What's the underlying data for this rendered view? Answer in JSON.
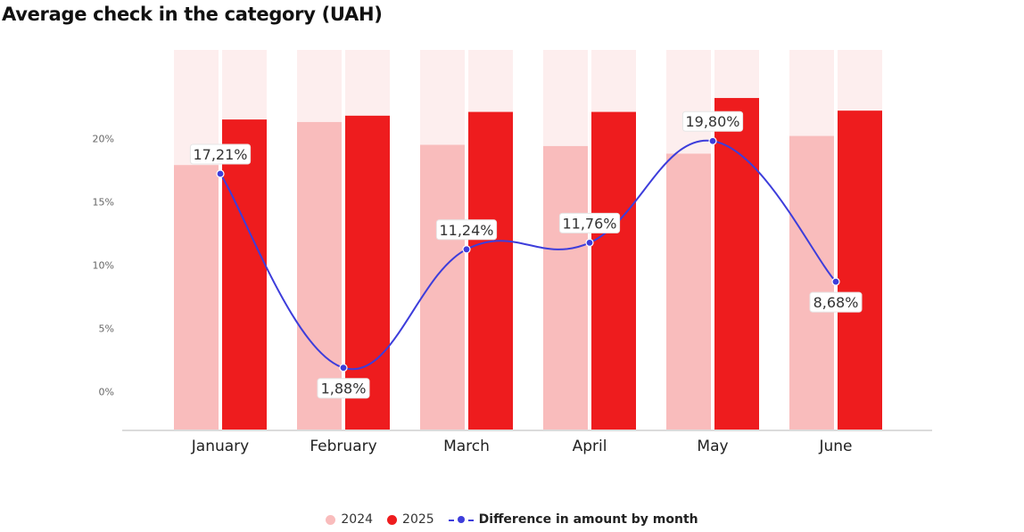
{
  "title": "Average check in the category (UAH)",
  "colors": {
    "bar_2024": "#f9bcbc",
    "bar_2025": "#ee1c1e",
    "bar_bg": "#fdeeee",
    "line": "#3d3ddb",
    "axis": "#cfcfcf",
    "tick_text": "#666666",
    "label_text": "#333333"
  },
  "legend": {
    "items": [
      {
        "label": "2024"
      },
      {
        "label": "2025"
      },
      {
        "label": "Difference in amount by month"
      }
    ]
  },
  "chart_data": {
    "type": "bar",
    "categories": [
      "January",
      "February",
      "March",
      "April",
      "May",
      "June"
    ],
    "series": [
      {
        "name": "2024",
        "values": [
          17.9,
          21.3,
          19.5,
          19.4,
          18.8,
          20.2
        ]
      },
      {
        "name": "2025",
        "values": [
          21.5,
          21.8,
          22.1,
          22.1,
          23.2,
          22.2
        ]
      },
      {
        "name": "Difference in amount by month",
        "type": "line",
        "values": [
          17.21,
          1.88,
          11.24,
          11.76,
          19.8,
          8.68
        ],
        "labels": [
          "17,21%",
          "1,88%",
          "11,24%",
          "11,76%",
          "19,80%",
          "8,68%"
        ]
      }
    ],
    "y_ticks": [
      "0%",
      "5%",
      "10%",
      "15%",
      "20%"
    ],
    "y_tick_values": [
      0,
      5,
      10,
      15,
      20
    ],
    "ylim": [
      -3,
      27
    ],
    "legend_position": "bottom",
    "grid": false
  }
}
